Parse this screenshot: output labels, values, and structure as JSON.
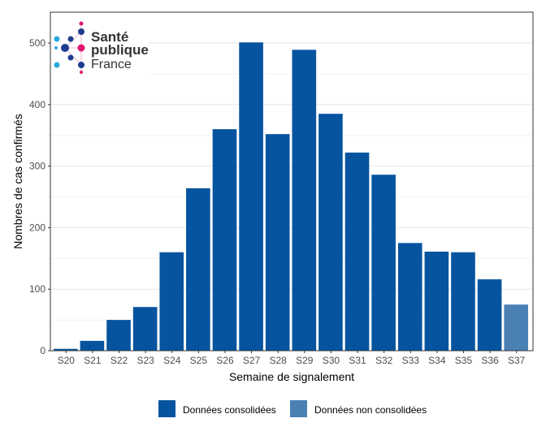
{
  "chart_data": {
    "type": "bar",
    "xlabel": "Semaine de signalement",
    "ylabel": "Nombres de cas confirmés",
    "ylim": [
      0,
      550
    ],
    "yticks": [
      0,
      100,
      200,
      300,
      400,
      500
    ],
    "grid": true,
    "legend_position": "bottom",
    "categories": [
      "S20",
      "S21",
      "S22",
      "S23",
      "S24",
      "S25",
      "S26",
      "S27",
      "S28",
      "S29",
      "S30",
      "S31",
      "S32",
      "S33",
      "S34",
      "S35",
      "S36",
      "S37"
    ],
    "values": [
      3,
      16,
      50,
      71,
      160,
      264,
      360,
      501,
      352,
      489,
      385,
      322,
      286,
      175,
      161,
      160,
      116,
      75
    ],
    "status": [
      "c",
      "c",
      "c",
      "c",
      "c",
      "c",
      "c",
      "c",
      "c",
      "c",
      "c",
      "c",
      "c",
      "c",
      "c",
      "c",
      "c",
      "n"
    ],
    "legend": [
      {
        "key": "c",
        "label": "Données consolidées",
        "color": "#06549f"
      },
      {
        "key": "n",
        "label": "Données non consolidées",
        "color": "#4a80b4"
      }
    ]
  },
  "logo": {
    "line1": "Santé",
    "line2": "publique",
    "line3": "France"
  }
}
